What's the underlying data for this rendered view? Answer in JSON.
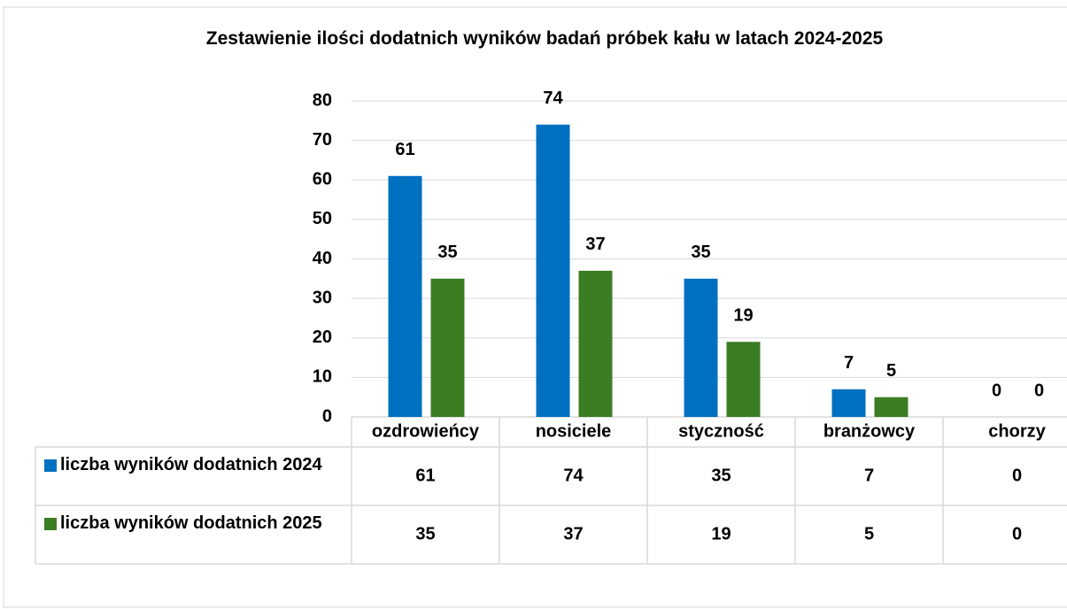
{
  "chart_data": {
    "type": "bar",
    "title": "Zestawienie ilości dodatnich wyników badań próbek kału w latach 2024-2025",
    "categories": [
      "ozdrowieńcy",
      "nosiciele",
      "styczność",
      "branżowcy",
      "chorzy"
    ],
    "series": [
      {
        "name": "liczba wyników dodatnich 2024",
        "color": "#0070c0",
        "values": [
          61,
          74,
          35,
          7,
          0
        ]
      },
      {
        "name": "liczba wyników dodatnich 2025",
        "color": "#3b7d23",
        "values": [
          35,
          37,
          19,
          5,
          0
        ]
      }
    ],
    "ylim": [
      0,
      80
    ],
    "yticks": [
      0,
      10,
      20,
      30,
      40,
      50,
      60,
      70,
      80
    ],
    "grid": true,
    "data_table": true
  }
}
